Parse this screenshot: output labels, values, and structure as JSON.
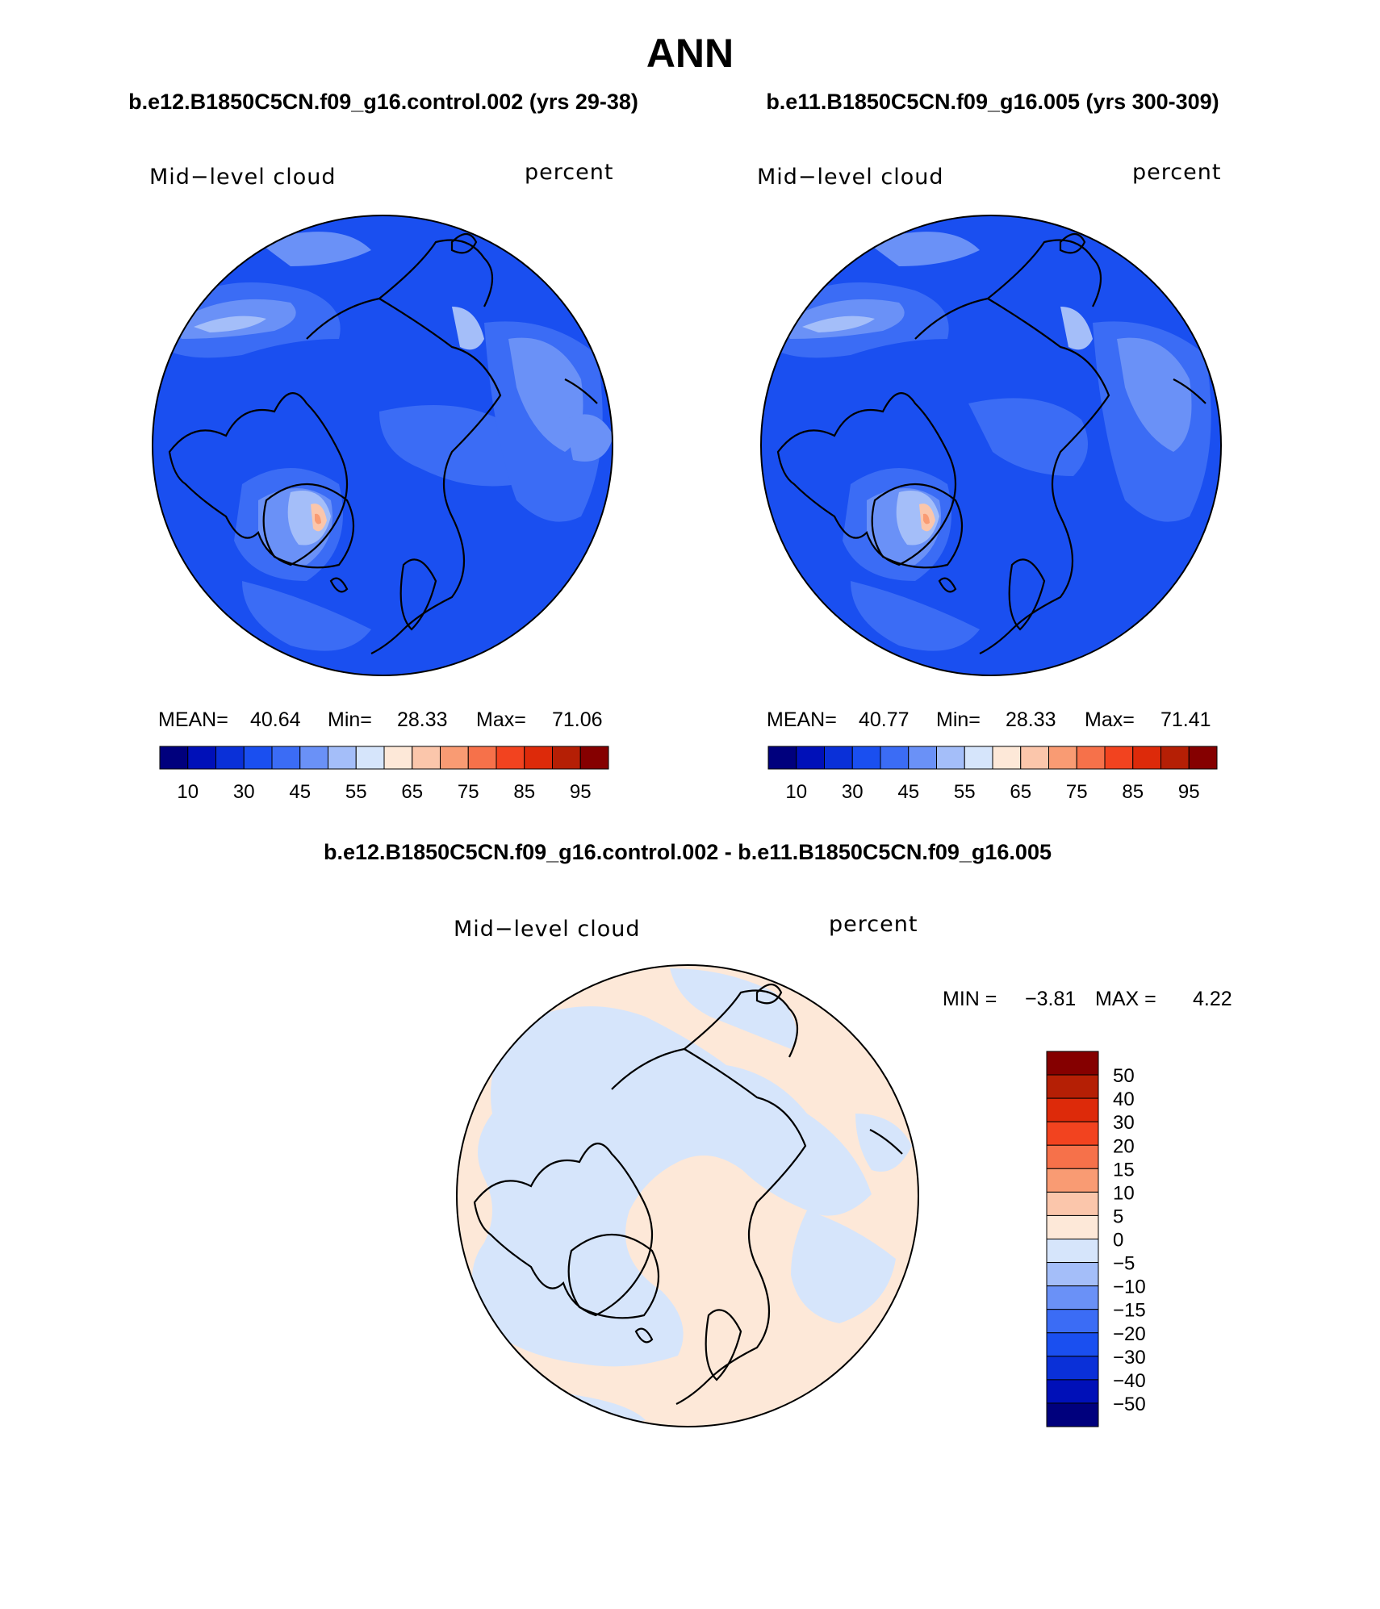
{
  "page": {
    "title": "ANN",
    "diff_title": "b.e12.B1850C5CN.f09_g16.control.002 - b.e11.B1850C5CN.f09_g16.005"
  },
  "panels": [
    {
      "case_title": "b.e12.B1850C5CN.f09_g16.control.002 (yrs 29-38)",
      "variable": "Mid−level cloud",
      "units": "percent",
      "stats": {
        "mean_label": "MEAN=",
        "mean": "40.64",
        "min_label": "Min=",
        "min": "28.33",
        "max_label": "Max=",
        "max": "71.06"
      }
    },
    {
      "case_title": "b.e11.B1850C5CN.f09_g16.005 (yrs 300-309)",
      "variable": "Mid−level cloud",
      "units": "percent",
      "stats": {
        "mean_label": "MEAN=",
        "mean": "40.77",
        "min_label": "Min=",
        "min": "28.33",
        "max_label": "Max=",
        "max": "71.41"
      }
    }
  ],
  "diff_panel": {
    "variable": "Mid−level cloud",
    "units": "percent",
    "stats": {
      "min_label": "MIN =",
      "min": "−3.81",
      "max_label": "MAX =",
      "max": "4.22"
    }
  },
  "colorbar_main": {
    "colors": [
      "#00007d",
      "#0010b8",
      "#0a30d8",
      "#1a4ff0",
      "#3b6cf5",
      "#6a91f7",
      "#a4bef9",
      "#d6e5fb",
      "#fde8d8",
      "#fbc6ab",
      "#f99b73",
      "#f6714a",
      "#f2431f",
      "#dd2a0a",
      "#b51f05",
      "#850000"
    ],
    "labels": [
      "10",
      "30",
      "45",
      "55",
      "65",
      "75",
      "85",
      "95"
    ]
  },
  "colorbar_diff": {
    "colors": [
      "#00007d",
      "#0010b8",
      "#0a30d8",
      "#1a4ff0",
      "#3b6cf5",
      "#6a91f7",
      "#a4bef9",
      "#d6e5fb",
      "#fde8d8",
      "#fbc6ab",
      "#f99b73",
      "#f6714a",
      "#f2431f",
      "#dd2a0a",
      "#b51f05",
      "#850000"
    ],
    "labels": [
      "50",
      "40",
      "30",
      "20",
      "15",
      "10",
      "5",
      "0",
      "−5",
      "−10",
      "−15",
      "−20",
      "−30",
      "−40",
      "−50"
    ]
  },
  "map_colors": {
    "base_blue": "#1a4ff0",
    "mid_blue": "#3b6cf5",
    "light_blue": "#6a91f7",
    "pale_blue": "#a4bef9",
    "very_pale": "#d6e5fb",
    "peach": "#fbc6ab",
    "orange": "#f99b73",
    "diff_blue": "#d6e5fb",
    "diff_peach": "#fde8d8"
  }
}
